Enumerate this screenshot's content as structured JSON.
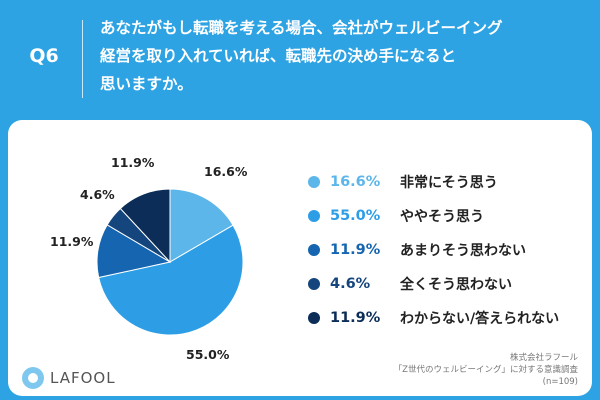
{
  "header": {
    "question_number": "Q6",
    "question_lines": [
      "あなたがもし転職を考える場合、会社がウェルビーイング",
      "経営を取り入れていれば、転職先の決め手になると",
      "思いますか。"
    ]
  },
  "colors": {
    "background": "#2ea3e3",
    "card": "#ffffff",
    "slices": [
      "#5cb6ea",
      "#2d9ee6",
      "#1565b0",
      "#15457d",
      "#0c2d57"
    ]
  },
  "chart_data": {
    "type": "pie",
    "title": "",
    "start_angle_deg": 0,
    "direction": "clockwise",
    "slices": [
      {
        "label": "非常にそう思う",
        "value": 16.6,
        "display": "16.6%"
      },
      {
        "label": "ややそう思う",
        "value": 55.0,
        "display": "55.0%"
      },
      {
        "label": "あまりそう思わない",
        "value": 11.9,
        "display": "11.9%"
      },
      {
        "label": "全くそう思わない",
        "value": 4.6,
        "display": "4.6%"
      },
      {
        "label": "わからない/答えられない",
        "value": 11.9,
        "display": "11.9%"
      }
    ],
    "legend_position": "right"
  },
  "footer": {
    "logo_text": "LAFOOL",
    "source_lines": [
      "株式会社ラフール",
      "「Z世代のウェルビーイング」に対する意識調査",
      "(n=109)"
    ]
  }
}
